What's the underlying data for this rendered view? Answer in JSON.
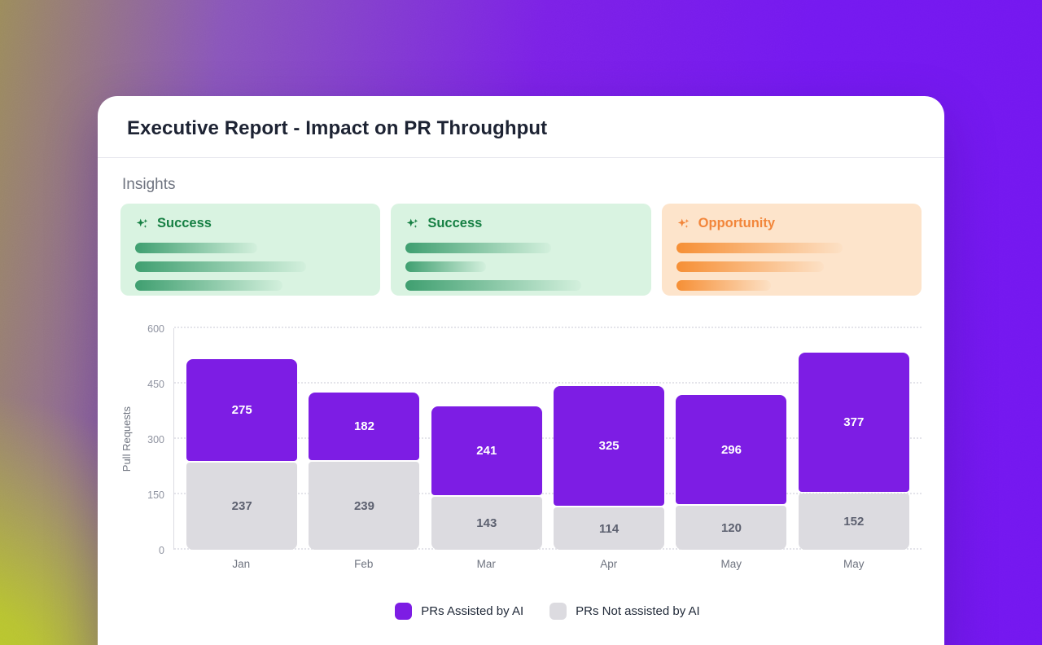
{
  "report": {
    "title": "Executive Report - Impact on PR Throughput"
  },
  "insights": {
    "section_label": "Insights",
    "cards": [
      {
        "label": "Success",
        "type": "success",
        "skeleton_bar_widths_pct": [
          53,
          74,
          64
        ]
      },
      {
        "label": "Success",
        "type": "success",
        "skeleton_bar_widths_pct": [
          63,
          35,
          76
        ]
      },
      {
        "label": "Opportunity",
        "type": "opportunity",
        "skeleton_bar_widths_pct": [
          72,
          64,
          41
        ]
      }
    ],
    "colors": {
      "success_bg": "#d9f3e1",
      "success_text": "#178044",
      "success_bar_start": "#3f9f70",
      "opportunity_bg": "#fde4cb",
      "opportunity_text": "#f2863b",
      "opportunity_bar_start": "#f68f35"
    }
  },
  "chart_data": {
    "type": "bar",
    "stacked": true,
    "categories": [
      "Jan",
      "Feb",
      "Mar",
      "Apr",
      "May",
      "May"
    ],
    "series": [
      {
        "name": "PRs Assisted by AI",
        "color": "#7d1de4",
        "value_label_color": "#ffffff",
        "values": [
          275,
          182,
          241,
          325,
          296,
          377
        ]
      },
      {
        "name": "PRs Not assisted by AI",
        "color": "#dcdbe0",
        "value_label_color": "#5d6170",
        "values": [
          237,
          239,
          143,
          114,
          120,
          152
        ]
      }
    ],
    "ylabel": "Pull Requests",
    "ylim": [
      0,
      600
    ],
    "yticks": [
      0,
      150,
      300,
      450,
      600
    ],
    "grid": "horizontal-dotted",
    "legend_position": "bottom"
  },
  "background": {
    "top_left_olive": "#9c8c5c",
    "purple_mid": "#8a55bb",
    "purple_right": "#7316f0",
    "bottom_left_green": "#bdce25"
  }
}
